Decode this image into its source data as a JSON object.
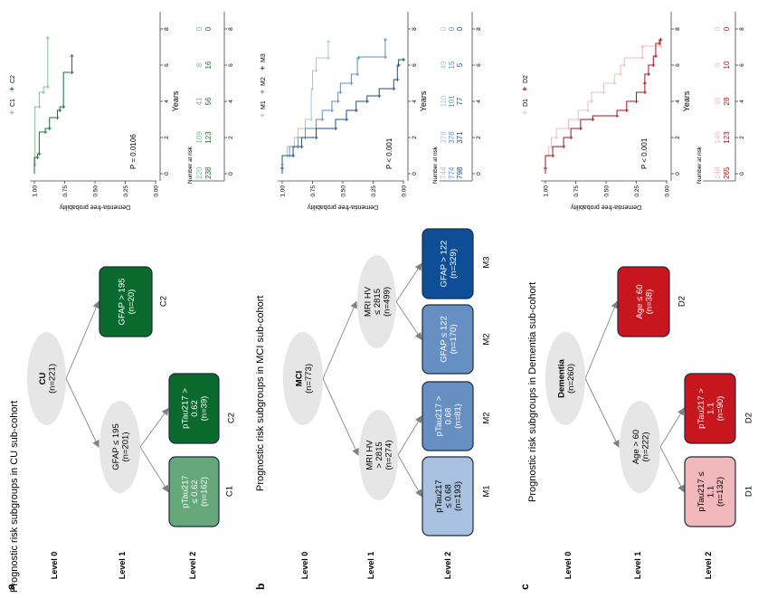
{
  "panels": [
    {
      "label": "a",
      "title": "Prognostic risk subgroups in CU sub-cohort",
      "levels": [
        "Level 0",
        "Level 1",
        "Level 2"
      ],
      "tree": {
        "nodes": [
          {
            "lines": [
              "CU",
              "(n=221)"
            ],
            "fill": "#e6e6e6",
            "text_color": "#000000"
          },
          {
            "lines": [
              "GFAP  ≤ 195",
              "(n=201)"
            ],
            "fill": "#e6e6e6",
            "text_color": "#000000"
          },
          {
            "lines": [
              "GFAP > 195",
              "(n=20)"
            ],
            "fill": "#0a6a2d",
            "text_color": "#ffffff",
            "group": "C2"
          },
          {
            "lines": [
              "pTau217",
              "≤ 0.62",
              "(n=162)"
            ],
            "fill": "#67a87a",
            "text_color": "#ffffff",
            "group": "C1"
          },
          {
            "lines": [
              "pTau217 >",
              "0.62",
              "(n=39)"
            ],
            "fill": "#0a6a2d",
            "text_color": "#ffffff",
            "group": "C2"
          }
        ]
      }
    },
    {
      "label": "b",
      "title": "Prognostic risk subgroups in MCI sub-cohort",
      "levels": [
        "Level 0",
        "Level 1",
        "Level 2"
      ],
      "tree": {
        "nodes": [
          {
            "lines": [
              "MCI",
              "(n=773)"
            ],
            "fill": "#e6e6e6",
            "text_color": "#000000"
          },
          {
            "lines": [
              "MRI HV",
              "> 2815",
              "(n=274)"
            ],
            "fill": "#e6e6e6",
            "text_color": "#000000"
          },
          {
            "lines": [
              "MRI HV",
              "≤ 2815",
              "(n=499)"
            ],
            "fill": "#e6e6e6",
            "text_color": "#000000"
          },
          {
            "lines": [
              "pTau217",
              "≤ 0.68",
              "(n=193)"
            ],
            "fill": "#a8c1df",
            "text_color": "#000000",
            "group": "M1"
          },
          {
            "lines": [
              "pTau217 >",
              "0.68",
              "(n=81)"
            ],
            "fill": "#6790c2",
            "text_color": "#ffffff",
            "group": "M2"
          },
          {
            "lines": [
              "GFAP ≤ 122",
              "(n=170)"
            ],
            "fill": "#6790c2",
            "text_color": "#ffffff",
            "group": "M2"
          },
          {
            "lines": [
              "GFAP > 122",
              "(n=329)"
            ],
            "fill": "#0e4e97",
            "text_color": "#ffffff",
            "group": "M3"
          }
        ]
      }
    },
    {
      "label": "c",
      "title": "Prognostic risk subgroups in Dementia sub-cohort",
      "levels": [
        "Level 0",
        "Level 1",
        "Level 2"
      ],
      "tree": {
        "nodes": [
          {
            "lines": [
              "Dementia",
              "(n=260)"
            ],
            "fill": "#e6e6e6",
            "text_color": "#000000"
          },
          {
            "lines": [
              "Age > 60",
              "(n=222)"
            ],
            "fill": "#e6e6e6",
            "text_color": "#000000"
          },
          {
            "lines": [
              "Age ≤ 60",
              "(n=38)"
            ],
            "fill": "#c8161e",
            "text_color": "#ffffff",
            "group": "D2"
          },
          {
            "lines": [
              "pTau217 ≤",
              "1.1",
              "(n=132)"
            ],
            "fill": "#f2b9bc",
            "text_color": "#000000",
            "group": "D1"
          },
          {
            "lines": [
              "pTau217 >",
              "1.1",
              "(n=90)"
            ],
            "fill": "#c8161e",
            "text_color": "#ffffff",
            "group": "D2"
          }
        ]
      }
    }
  ],
  "chart_data": [
    {
      "type": "line",
      "subtype": "kaplan-meier",
      "xlabel": "Years",
      "ylabel": "Dementia-free probability",
      "xlim": [
        0,
        8
      ],
      "ylim": [
        0,
        1
      ],
      "xticks": [
        "0",
        "2",
        "4",
        "6",
        "8"
      ],
      "yticks": [
        "1.00",
        "0.75",
        "0.50",
        "0.25",
        "0.00"
      ],
      "p_value": "P = 0.0106",
      "legend_position": "top",
      "risk_table_title": "Number at risk",
      "series": [
        {
          "name": "C1",
          "color": "#86c095",
          "points": [
            [
              0,
              1
            ],
            [
              0.5,
              0.995
            ],
            [
              3.7,
              0.96
            ],
            [
              4.5,
              0.925
            ],
            [
              4.8,
              0.89
            ],
            [
              7.5,
              0.89
            ]
          ],
          "at_risk": [
            "220",
            "109",
            "41",
            "8",
            "0"
          ]
        },
        {
          "name": "C2",
          "color": "#1f6b35",
          "points": [
            [
              0,
              1
            ],
            [
              0.9,
              0.975
            ],
            [
              1.1,
              0.96
            ],
            [
              2.3,
              0.91
            ],
            [
              2.5,
              0.875
            ],
            [
              3.1,
              0.81
            ],
            [
              3.5,
              0.79
            ],
            [
              3.7,
              0.76
            ],
            [
              5.6,
              0.69
            ],
            [
              6.5,
              0.69
            ]
          ],
          "at_risk": [
            "238",
            "123",
            "56",
            "16",
            "0"
          ]
        }
      ]
    },
    {
      "type": "line",
      "subtype": "kaplan-meier",
      "xlabel": "Years",
      "ylabel": "Dementia-free probability",
      "xlim": [
        0,
        8
      ],
      "ylim": [
        0,
        1
      ],
      "xticks": [
        "0",
        "2",
        "4",
        "6",
        "8"
      ],
      "yticks": [
        "1.00",
        "0.75",
        "0.50",
        "0.25",
        "0.00"
      ],
      "p_value": "P < 0.001",
      "legend_position": "top",
      "risk_table_title": "Number at risk",
      "series": [
        {
          "name": "M1",
          "color": "#a9c5e2",
          "points": [
            [
              0,
              1
            ],
            [
              0.5,
              1
            ],
            [
              1,
              0.96
            ],
            [
              1.5,
              0.9
            ],
            [
              2,
              0.87
            ],
            [
              2.5,
              0.81
            ],
            [
              3,
              0.76
            ],
            [
              4.7,
              0.75
            ],
            [
              5.7,
              0.72
            ],
            [
              6.4,
              0.62
            ],
            [
              7.3,
              0.62
            ]
          ],
          "at_risk": [
            "744",
            "378",
            "110",
            "49",
            "0"
          ]
        },
        {
          "name": "M2",
          "color": "#5f8fc4",
          "points": [
            [
              0,
              1
            ],
            [
              1,
              0.94
            ],
            [
              1.5,
              0.87
            ],
            [
              2,
              0.81
            ],
            [
              2.5,
              0.72
            ],
            [
              3,
              0.67
            ],
            [
              3.5,
              0.59
            ],
            [
              4,
              0.54
            ],
            [
              4.5,
              0.52
            ],
            [
              5,
              0.43
            ],
            [
              5.5,
              0.38
            ],
            [
              6.4,
              0.37
            ],
            [
              6.45,
              0.15
            ],
            [
              7.4,
              0.15
            ]
          ],
          "at_risk": [
            "774",
            "378",
            "101",
            "15",
            "0"
          ]
        },
        {
          "name": "M3",
          "color": "#15508f",
          "points": [
            [
              0,
              1
            ],
            [
              0.3,
              1
            ],
            [
              1,
              0.91
            ],
            [
              1.5,
              0.84
            ],
            [
              2,
              0.72
            ],
            [
              2.5,
              0.56
            ],
            [
              3,
              0.47
            ],
            [
              3.5,
              0.39
            ],
            [
              4,
              0.3
            ],
            [
              4.3,
              0.2
            ],
            [
              4.7,
              0.08
            ],
            [
              5.2,
              0.05
            ],
            [
              6,
              0.04
            ],
            [
              6.3,
              0
            ]
          ],
          "at_risk": [
            "798",
            "371",
            "77",
            "5",
            "0"
          ]
        }
      ]
    },
    {
      "type": "line",
      "subtype": "kaplan-meier",
      "xlabel": "Years",
      "ylabel": "Dementia-free probability",
      "xlim": [
        0,
        8
      ],
      "ylim": [
        0,
        1
      ],
      "xticks": [
        "0",
        "2",
        "4",
        "6",
        "8"
      ],
      "yticks": [
        "1.00",
        "0.75",
        "0.50",
        "0.25",
        "0.00"
      ],
      "p_value": "P < 0.001",
      "legend_position": "top",
      "risk_table_title": "Number at risk",
      "series": [
        {
          "name": "D1",
          "color": "#efbcbf",
          "points": [
            [
              0,
              1
            ],
            [
              0.3,
              1
            ],
            [
              1,
              0.975
            ],
            [
              1.5,
              0.95
            ],
            [
              2,
              0.91
            ],
            [
              2.5,
              0.81
            ],
            [
              3,
              0.73
            ],
            [
              3.5,
              0.65
            ],
            [
              4,
              0.62
            ],
            [
              4.5,
              0.52
            ],
            [
              5,
              0.43
            ],
            [
              5.5,
              0.38
            ],
            [
              6,
              0.35
            ],
            [
              6.4,
              0.2
            ],
            [
              7,
              0.2
            ],
            [
              7.05,
              0.05
            ],
            [
              7.4,
              0.05
            ]
          ],
          "at_risk": [
            "248",
            "146",
            "38",
            "9",
            "0"
          ]
        },
        {
          "name": "D2",
          "color": "#a5161d",
          "points": [
            [
              0,
              1
            ],
            [
              0.3,
              1
            ],
            [
              1,
              0.94
            ],
            [
              1.5,
              0.85
            ],
            [
              2,
              0.79
            ],
            [
              2.5,
              0.71
            ],
            [
              3,
              0.61
            ],
            [
              3.2,
              0.41
            ],
            [
              3.5,
              0.33
            ],
            [
              4,
              0.25
            ],
            [
              4.5,
              0.18
            ],
            [
              5,
              0.18
            ],
            [
              5.5,
              0.15
            ],
            [
              6,
              0.11
            ],
            [
              6.5,
              0.09
            ],
            [
              7.2,
              0.06
            ],
            [
              7.4,
              0.05
            ]
          ],
          "at_risk": [
            "265",
            "123",
            "28",
            "10",
            "0"
          ]
        }
      ]
    }
  ]
}
